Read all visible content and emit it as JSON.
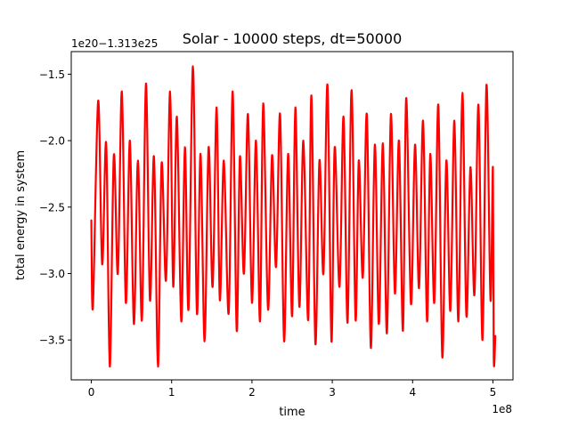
{
  "chart_data": {
    "type": "line",
    "title": "Solar - 10000 steps, dt=50000",
    "xlabel": "time",
    "ylabel": "total energy in system",
    "x_offset_text": "1e8",
    "y_offset_text": "1e20−1.313e25",
    "xlim": [
      -0.25,
      5.25
    ],
    "ylim": [
      -3.8,
      -1.33
    ],
    "x_ticks": [
      0,
      1,
      2,
      3,
      4,
      5
    ],
    "x_tick_labels": [
      "0",
      "1",
      "2",
      "3",
      "4",
      "5"
    ],
    "y_ticks": [
      -3.5,
      -3.0,
      -2.5,
      -2.0,
      -1.5
    ],
    "y_tick_labels": [
      "−3.5",
      "−3.0",
      "−2.5",
      "−2.0",
      "−1.5"
    ],
    "grid": false,
    "series": [
      {
        "color": "#ff0000",
        "x": [
          0.0,
          0.02,
          0.085,
          0.135,
          0.185,
          0.23,
          0.28,
          0.33,
          0.38,
          0.43,
          0.48,
          0.53,
          0.58,
          0.63,
          0.68,
          0.73,
          0.78,
          0.83,
          0.875,
          0.93,
          0.98,
          1.02,
          1.065,
          1.12,
          1.165,
          1.21,
          1.265,
          1.315,
          1.36,
          1.41,
          1.46,
          1.51,
          1.56,
          1.6,
          1.65,
          1.71,
          1.76,
          1.81,
          1.85,
          1.9,
          1.95,
          2.0,
          2.05,
          2.1,
          2.14,
          2.2,
          2.25,
          2.3,
          2.35,
          2.4,
          2.45,
          2.5,
          2.54,
          2.59,
          2.64,
          2.7,
          2.74,
          2.79,
          2.84,
          2.89,
          2.94,
          2.99,
          3.03,
          3.09,
          3.14,
          3.19,
          3.24,
          3.29,
          3.33,
          3.38,
          3.43,
          3.48,
          3.53,
          3.58,
          3.63,
          3.68,
          3.73,
          3.78,
          3.83,
          3.88,
          3.92,
          3.98,
          4.03,
          4.08,
          4.13,
          4.18,
          4.22,
          4.27,
          4.32,
          4.37,
          4.42,
          4.47,
          4.52,
          4.57,
          4.62,
          4.67,
          4.72,
          4.77,
          4.82,
          4.87,
          4.92,
          4.97,
          5.0,
          5.01,
          5.03
        ],
        "y": [
          -2.6,
          -3.25,
          -1.7,
          -2.93,
          -2.02,
          -3.7,
          -2.11,
          -3.0,
          -1.63,
          -3.22,
          -2.0,
          -3.38,
          -2.15,
          -3.35,
          -1.57,
          -3.2,
          -2.12,
          -3.7,
          -2.17,
          -3.05,
          -1.63,
          -3.1,
          -1.82,
          -3.36,
          -2.05,
          -3.27,
          -1.44,
          -3.3,
          -2.1,
          -3.51,
          -2.05,
          -3.1,
          -1.75,
          -3.2,
          -2.15,
          -3.3,
          -1.63,
          -3.43,
          -2.12,
          -3.0,
          -1.8,
          -3.22,
          -2.0,
          -3.36,
          -1.72,
          -3.27,
          -2.11,
          -2.95,
          -1.8,
          -3.51,
          -2.1,
          -3.32,
          -1.75,
          -3.25,
          -2.0,
          -3.35,
          -1.66,
          -3.53,
          -2.15,
          -3.0,
          -1.58,
          -3.51,
          -2.05,
          -3.1,
          -1.82,
          -3.37,
          -1.62,
          -3.35,
          -2.15,
          -3.03,
          -1.8,
          -3.56,
          -2.03,
          -3.38,
          -2.02,
          -3.45,
          -1.8,
          -3.15,
          -2.0,
          -3.43,
          -1.68,
          -3.23,
          -2.03,
          -3.11,
          -1.85,
          -3.36,
          -2.1,
          -3.22,
          -1.73,
          -3.63,
          -2.15,
          -3.28,
          -1.85,
          -3.36,
          -1.64,
          -3.32,
          -2.2,
          -3.16,
          -1.73,
          -3.5,
          -1.58,
          -3.2,
          -2.2,
          -3.63,
          -3.47
        ]
      }
    ]
  }
}
